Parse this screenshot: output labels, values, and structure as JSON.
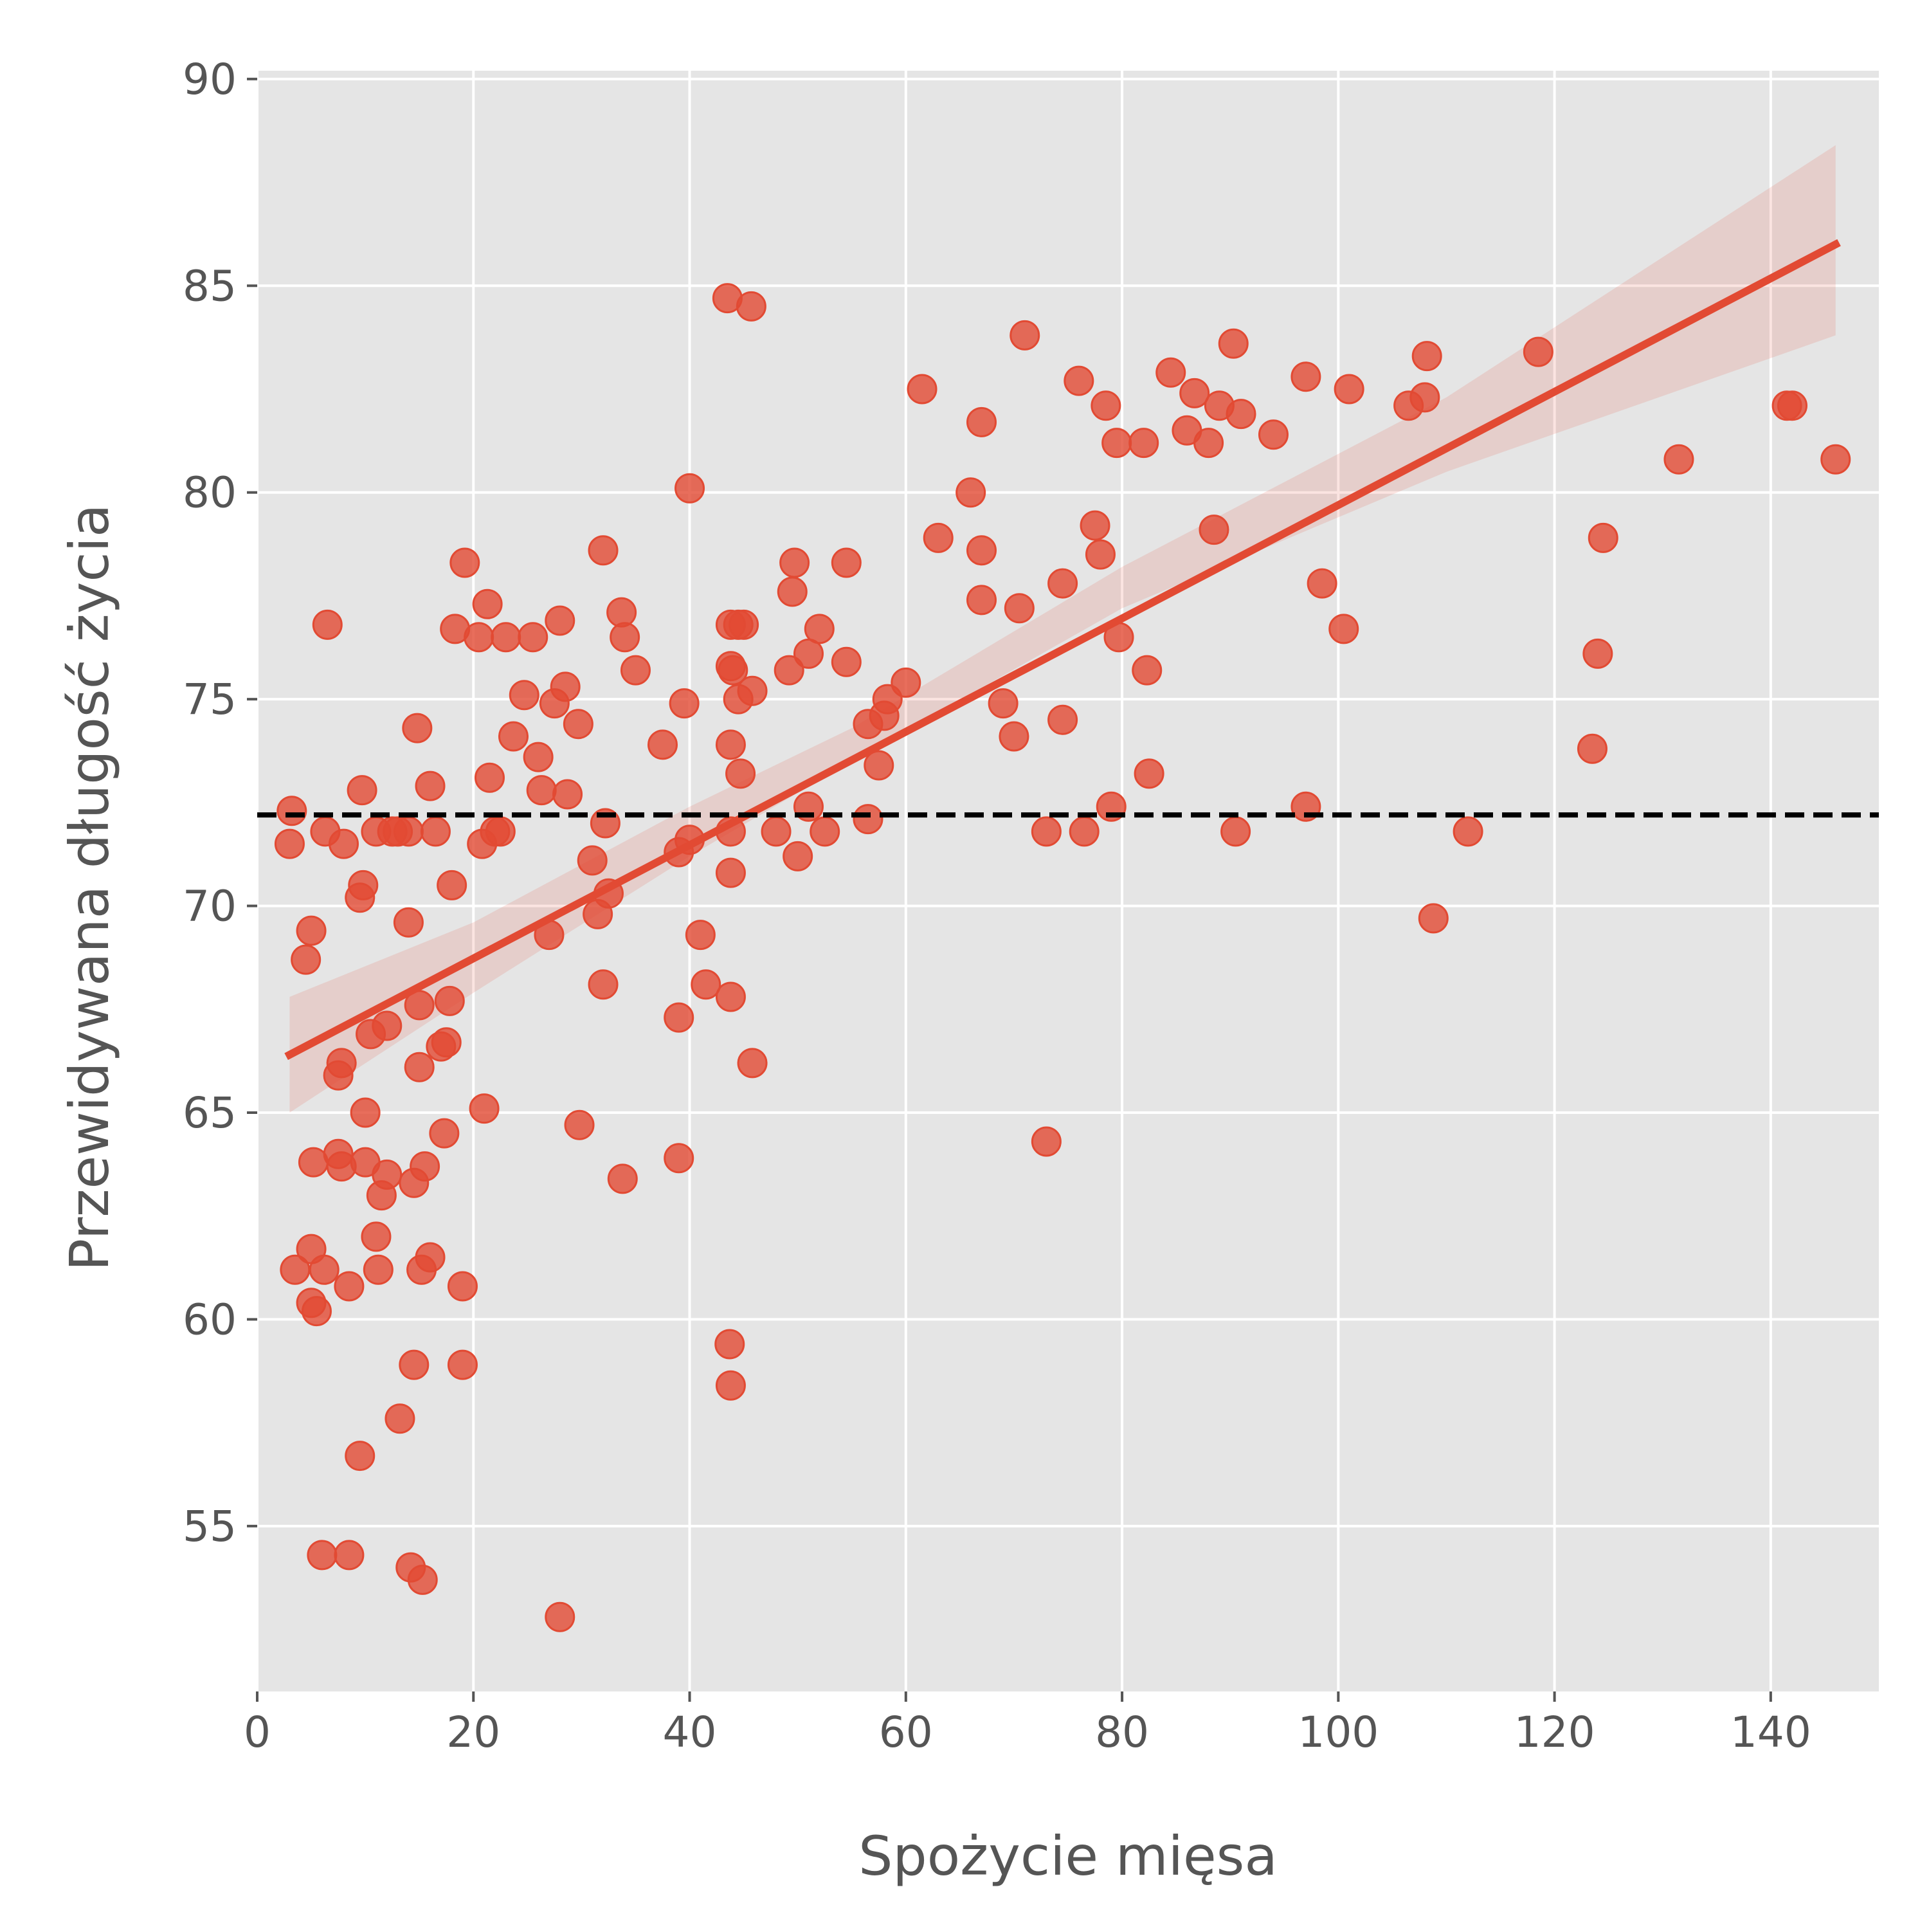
{
  "chart_data": {
    "type": "scatter",
    "title": "",
    "xlabel": "Spożycie mięsa",
    "ylabel": "Przewidywana długość życia",
    "xlim": [
      0,
      150
    ],
    "ylim": [
      51,
      90.2
    ],
    "xticks": [
      "0",
      "20",
      "40",
      "60",
      "80",
      "100",
      "120",
      "140"
    ],
    "yticks": [
      "55",
      "60",
      "65",
      "70",
      "75",
      "80",
      "85",
      "90"
    ],
    "grid": true,
    "background": "#e5e5e5",
    "point_color": "#e24a33",
    "line_color": "#e24a33",
    "band_color": "#e24a33",
    "reference_line": {
      "y": 72.2,
      "style": "dashed",
      "color": "#000000"
    },
    "regression": {
      "x": [
        3,
        146
      ],
      "y": [
        66.4,
        86.0
      ],
      "ci_lower": [
        [
          3,
          65.0
        ],
        [
          20,
          67.9
        ],
        [
          40,
          71.2
        ],
        [
          55,
          73.5
        ],
        [
          80,
          77.2
        ],
        [
          110,
          80.5
        ],
        [
          146,
          83.8
        ]
      ],
      "ci_upper": [
        [
          3,
          67.8
        ],
        [
          20,
          69.6
        ],
        [
          40,
          72.4
        ],
        [
          55,
          74.3
        ],
        [
          80,
          78.2
        ],
        [
          110,
          82.3
        ],
        [
          146,
          88.4
        ]
      ]
    },
    "points": [
      [
        3.2,
        72.3
      ],
      [
        3.0,
        71.5
      ],
      [
        3.5,
        61.2
      ],
      [
        4.5,
        68.7
      ],
      [
        5,
        69.4
      ],
      [
        5,
        60.4
      ],
      [
        5.5,
        60.2
      ],
      [
        5,
        61.7
      ],
      [
        5.2,
        63.8
      ],
      [
        6.5,
        76.8
      ],
      [
        6.3,
        71.8
      ],
      [
        6.2,
        61.2
      ],
      [
        6,
        54.3
      ],
      [
        7.5,
        64.0
      ],
      [
        7.8,
        63.7
      ],
      [
        7.5,
        65.9
      ],
      [
        7.8,
        66.2
      ],
      [
        8,
        71.5
      ],
      [
        8.5,
        60.8
      ],
      [
        8.5,
        54.3
      ],
      [
        9.5,
        70.2
      ],
      [
        9.8,
        70.5
      ],
      [
        9.7,
        72.8
      ],
      [
        10,
        63.8
      ],
      [
        10,
        65.0
      ],
      [
        9.5,
        56.7
      ],
      [
        10.5,
        66.9
      ],
      [
        11,
        71.8
      ],
      [
        11,
        62.0
      ],
      [
        11.2,
        61.2
      ],
      [
        11.5,
        63.0
      ],
      [
        12,
        63.5
      ],
      [
        12,
        67.1
      ],
      [
        12.5,
        71.8
      ],
      [
        13,
        71.8
      ],
      [
        13.2,
        57.6
      ],
      [
        14,
        69.6
      ],
      [
        14,
        71.8
      ],
      [
        14.5,
        63.3
      ],
      [
        14.5,
        58.9
      ],
      [
        14.2,
        54.0
      ],
      [
        14.8,
        74.3
      ],
      [
        15,
        66.1
      ],
      [
        15,
        67.6
      ],
      [
        15.2,
        61.2
      ],
      [
        15.5,
        63.7
      ],
      [
        15.3,
        53.7
      ],
      [
        16,
        72.9
      ],
      [
        16,
        61.5
      ],
      [
        16.5,
        71.8
      ],
      [
        17,
        66.6
      ],
      [
        17.3,
        64.5
      ],
      [
        17.5,
        66.7
      ],
      [
        17.8,
        67.7
      ],
      [
        18,
        70.5
      ],
      [
        18.3,
        76.7
      ],
      [
        19,
        60.8
      ],
      [
        19,
        58.9
      ],
      [
        19.2,
        78.3
      ],
      [
        20.5,
        76.5
      ],
      [
        20.8,
        71.5
      ],
      [
        21,
        65.1
      ],
      [
        21.3,
        77.3
      ],
      [
        21.5,
        73.1
      ],
      [
        22,
        71.8
      ],
      [
        22.5,
        71.8
      ],
      [
        23,
        76.5
      ],
      [
        23.7,
        74.1
      ],
      [
        24.7,
        75.1
      ],
      [
        25.5,
        76.5
      ],
      [
        26,
        73.6
      ],
      [
        26.3,
        72.8
      ],
      [
        27,
        69.3
      ],
      [
        27.5,
        74.9
      ],
      [
        28,
        76.9
      ],
      [
        28.5,
        75.3
      ],
      [
        28.7,
        72.7
      ],
      [
        28,
        52.8
      ],
      [
        29.7,
        74.4
      ],
      [
        29.8,
        64.7
      ],
      [
        31,
        71.1
      ],
      [
        31.5,
        69.8
      ],
      [
        32,
        68.1
      ],
      [
        32,
        78.6
      ],
      [
        32.2,
        72.0
      ],
      [
        32.5,
        70.3
      ],
      [
        33.7,
        77.1
      ],
      [
        34,
        76.5
      ],
      [
        33.8,
        63.4
      ],
      [
        35,
        75.7
      ],
      [
        37.5,
        73.9
      ],
      [
        39,
        71.3
      ],
      [
        39.5,
        74.9
      ],
      [
        39,
        67.3
      ],
      [
        39,
        63.9
      ],
      [
        40,
        71.6
      ],
      [
        40,
        80.1
      ],
      [
        41,
        69.3
      ],
      [
        41.5,
        68.1
      ],
      [
        43.5,
        84.7
      ],
      [
        43.8,
        76.8
      ],
      [
        43.8,
        75.8
      ],
      [
        44,
        75.7
      ],
      [
        43.8,
        73.9
      ],
      [
        43.8,
        71.8
      ],
      [
        43.8,
        70.8
      ],
      [
        43.8,
        67.8
      ],
      [
        43.7,
        59.4
      ],
      [
        43.8,
        58.4
      ],
      [
        44.5,
        76.8
      ],
      [
        44.5,
        75.0
      ],
      [
        44.7,
        73.2
      ],
      [
        45,
        76.8
      ],
      [
        45.7,
        84.5
      ],
      [
        45.8,
        75.2
      ],
      [
        45.8,
        66.2
      ],
      [
        48,
        71.8
      ],
      [
        49.2,
        75.7
      ],
      [
        49.5,
        77.6
      ],
      [
        49.7,
        78.3
      ],
      [
        50,
        71.2
      ],
      [
        51,
        76.1
      ],
      [
        51,
        72.4
      ],
      [
        52,
        76.7
      ],
      [
        52.5,
        71.8
      ],
      [
        54.5,
        78.3
      ],
      [
        54.5,
        75.9
      ],
      [
        56.5,
        74.4
      ],
      [
        56.5,
        72.1
      ],
      [
        57.5,
        73.4
      ],
      [
        58,
        74.6
      ],
      [
        58.3,
        75.0
      ],
      [
        60,
        75.4
      ],
      [
        61.5,
        82.5
      ],
      [
        63,
        78.9
      ],
      [
        66,
        80.0
      ],
      [
        67,
        81.7
      ],
      [
        67,
        78.6
      ],
      [
        67,
        77.4
      ],
      [
        69,
        74.9
      ],
      [
        70,
        74.1
      ],
      [
        70.5,
        77.2
      ],
      [
        71,
        83.8
      ],
      [
        73,
        71.8
      ],
      [
        73,
        64.3
      ],
      [
        74.5,
        77.8
      ],
      [
        74.5,
        74.5
      ],
      [
        76,
        82.7
      ],
      [
        76.5,
        71.8
      ],
      [
        77.5,
        79.2
      ],
      [
        78,
        78.5
      ],
      [
        78.5,
        82.1
      ],
      [
        79,
        72.4
      ],
      [
        79.5,
        81.2
      ],
      [
        79.7,
        76.5
      ],
      [
        82,
        81.2
      ],
      [
        82.3,
        75.7
      ],
      [
        82.5,
        73.2
      ],
      [
        84.5,
        82.9
      ],
      [
        86,
        81.5
      ],
      [
        86.7,
        82.4
      ],
      [
        88,
        81.2
      ],
      [
        88.5,
        79.1
      ],
      [
        89,
        82.1
      ],
      [
        90.3,
        83.6
      ],
      [
        90.5,
        71.8
      ],
      [
        91,
        81.9
      ],
      [
        94,
        81.4
      ],
      [
        97,
        82.8
      ],
      [
        97,
        72.4
      ],
      [
        98.5,
        77.8
      ],
      [
        100.5,
        76.7
      ],
      [
        101,
        82.5
      ],
      [
        106.5,
        82.1
      ],
      [
        108,
        82.3
      ],
      [
        108.2,
        83.3
      ],
      [
        108.8,
        69.7
      ],
      [
        112,
        71.8
      ],
      [
        118.5,
        83.4
      ],
      [
        123.5,
        73.8
      ],
      [
        124,
        76.1
      ],
      [
        124.5,
        78.9
      ],
      [
        131.5,
        80.8
      ],
      [
        141.5,
        82.1
      ],
      [
        142,
        82.1
      ],
      [
        146,
        80.8
      ]
    ]
  }
}
